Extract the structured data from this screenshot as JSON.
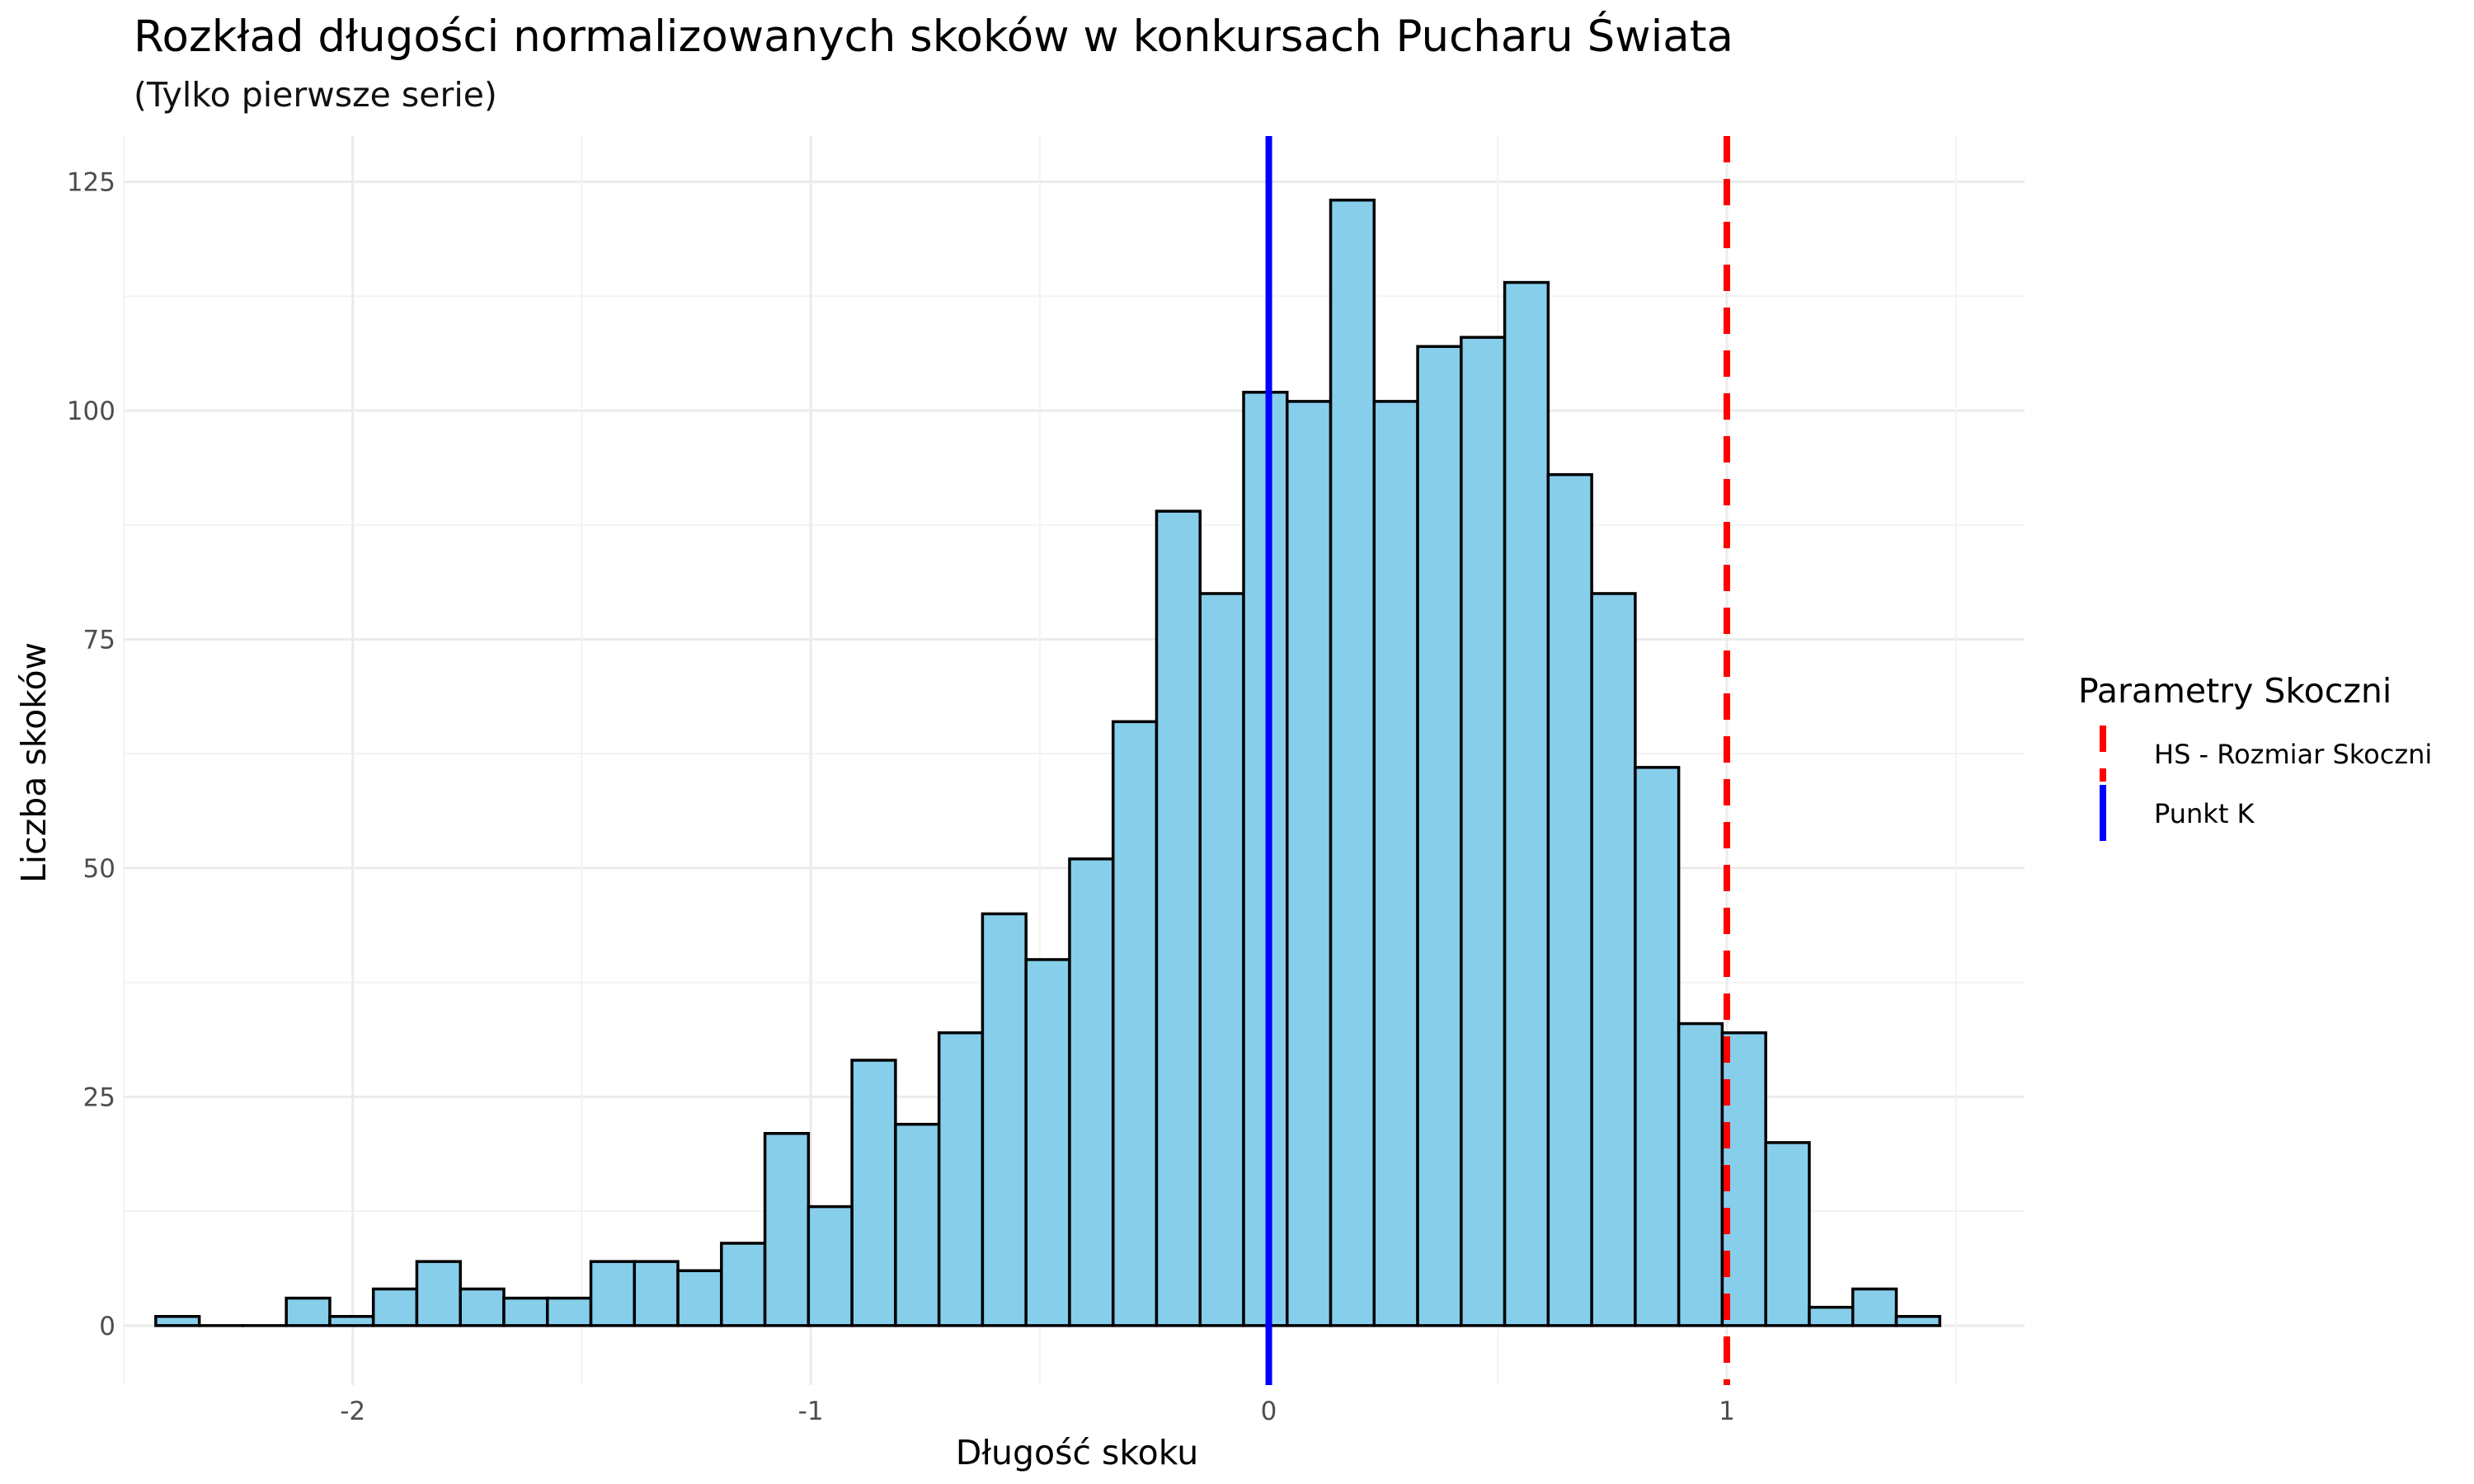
{
  "chart_data": {
    "type": "histogram",
    "title": "Rozkład długości normalizowanych skoków w konkursach Pucharu Świata",
    "subtitle": "(Tylko pierwsze serie)",
    "xlabel": "Długość skoku",
    "ylabel": "Liczba skoków",
    "xlim": [
      -2.5,
      1.65
    ],
    "ylim": [
      -6.5,
      130
    ],
    "x_ticks": [
      -2,
      -1,
      0,
      1
    ],
    "x_tick_labels": [
      "-2",
      "-1",
      "0",
      "1"
    ],
    "y_ticks": [
      0,
      25,
      50,
      75,
      100,
      125
    ],
    "y_tick_labels": [
      "0",
      "25",
      "50",
      "75",
      "100",
      "125"
    ],
    "grid": true,
    "bin_width": 0.095,
    "bins": [
      {
        "x0": -2.43,
        "count": 1
      },
      {
        "x0": -2.335,
        "count": 0
      },
      {
        "x0": -2.24,
        "count": 0
      },
      {
        "x0": -2.145,
        "count": 3
      },
      {
        "x0": -2.05,
        "count": 1
      },
      {
        "x0": -1.955,
        "count": 4
      },
      {
        "x0": -1.86,
        "count": 7
      },
      {
        "x0": -1.765,
        "count": 4
      },
      {
        "x0": -1.67,
        "count": 3
      },
      {
        "x0": -1.575,
        "count": 3
      },
      {
        "x0": -1.48,
        "count": 7
      },
      {
        "x0": -1.385,
        "count": 7
      },
      {
        "x0": -1.29,
        "count": 6
      },
      {
        "x0": -1.195,
        "count": 9
      },
      {
        "x0": -1.1,
        "count": 21
      },
      {
        "x0": -1.005,
        "count": 13
      },
      {
        "x0": -0.91,
        "count": 29
      },
      {
        "x0": -0.815,
        "count": 22
      },
      {
        "x0": -0.72,
        "count": 32
      },
      {
        "x0": -0.625,
        "count": 45
      },
      {
        "x0": -0.53,
        "count": 40
      },
      {
        "x0": -0.435,
        "count": 51
      },
      {
        "x0": -0.34,
        "count": 66
      },
      {
        "x0": -0.245,
        "count": 89
      },
      {
        "x0": -0.15,
        "count": 80
      },
      {
        "x0": -0.055,
        "count": 102
      },
      {
        "x0": 0.04,
        "count": 101
      },
      {
        "x0": 0.135,
        "count": 123
      },
      {
        "x0": 0.23,
        "count": 101
      },
      {
        "x0": 0.325,
        "count": 107
      },
      {
        "x0": 0.42,
        "count": 108
      },
      {
        "x0": 0.515,
        "count": 114
      },
      {
        "x0": 0.61,
        "count": 93
      },
      {
        "x0": 0.705,
        "count": 80
      },
      {
        "x0": 0.8,
        "count": 61
      },
      {
        "x0": 0.895,
        "count": 33
      },
      {
        "x0": 0.99,
        "count": 32
      },
      {
        "x0": 1.085,
        "count": 20
      },
      {
        "x0": 1.18,
        "count": 2
      },
      {
        "x0": 1.275,
        "count": 4
      },
      {
        "x0": 1.37,
        "count": 1
      }
    ],
    "bar_fill": "#87ceeb",
    "bar_stroke": "#000000",
    "reference_lines": [
      {
        "name": "HS - Rozmiar Skoczni",
        "x": 1,
        "color": "#ff0000",
        "style": "dashed"
      },
      {
        "name": "Punkt K",
        "x": 0,
        "color": "#0000ff",
        "style": "solid"
      }
    ],
    "legend": {
      "title": "Parametry Skoczni",
      "position": "right"
    }
  }
}
